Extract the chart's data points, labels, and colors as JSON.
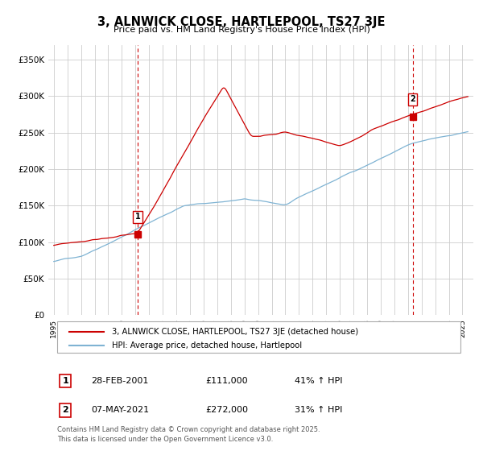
{
  "title": "3, ALNWICK CLOSE, HARTLEPOOL, TS27 3JE",
  "subtitle": "Price paid vs. HM Land Registry's House Price Index (HPI)",
  "ylabel_ticks": [
    "£0",
    "£50K",
    "£100K",
    "£150K",
    "£200K",
    "£250K",
    "£300K",
    "£350K"
  ],
  "ytick_vals": [
    0,
    50000,
    100000,
    150000,
    200000,
    250000,
    300000,
    350000
  ],
  "ylim": [
    0,
    370000
  ],
  "xlim_start": 1994.6,
  "xlim_end": 2025.8,
  "red_line_color": "#cc0000",
  "blue_line_color": "#7fb3d3",
  "vline_color": "#cc0000",
  "marker1_date": 2001.16,
  "marker1_price": 111000,
  "marker1_label": "1",
  "marker2_date": 2021.35,
  "marker2_price": 272000,
  "marker2_label": "2",
  "legend_red_label": "3, ALNWICK CLOSE, HARTLEPOOL, TS27 3JE (detached house)",
  "legend_blue_label": "HPI: Average price, detached house, Hartlepool",
  "transaction1_num": "1",
  "transaction1_date": "28-FEB-2001",
  "transaction1_price": "£111,000",
  "transaction1_hpi": "41% ↑ HPI",
  "transaction2_num": "2",
  "transaction2_date": "07-MAY-2021",
  "transaction2_price": "£272,000",
  "transaction2_hpi": "31% ↑ HPI",
  "footnote1": "Contains HM Land Registry data © Crown copyright and database right 2025.",
  "footnote2": "This data is licensed under the Open Government Licence v3.0.",
  "background_color": "#ffffff",
  "grid_color": "#cccccc"
}
